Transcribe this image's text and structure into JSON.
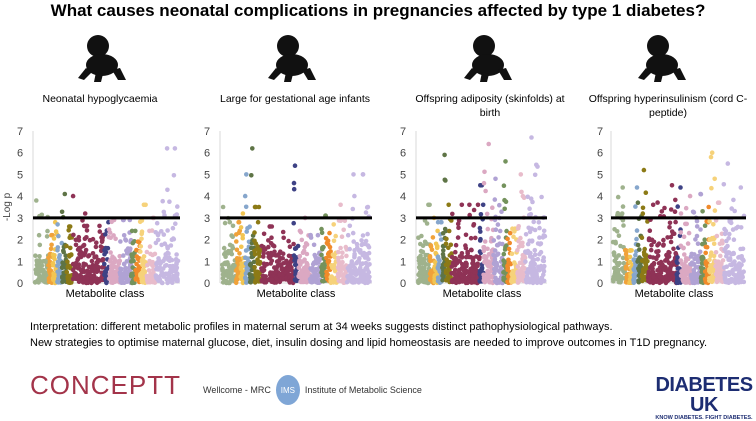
{
  "title": "What causes neonatal complications in pregnancies affected by type 1 diabetes?",
  "interpretation": [
    "Interpretation: different metabolic profiles in maternal serum at 34 weeks suggests distinct pathophysiological pathways.",
    "New strategies to optimise maternal glucose, diet, insulin dosing and lipid homeostasis are needed to improve outcomes in T1D pregnancy."
  ],
  "logos": {
    "conceptt": "CONCEPTT",
    "ims_prefix": "Wellcome - MRC",
    "ims_badge": "IMS",
    "ims_name": "Institute of Metabolic Science",
    "diabetes_uk": "DIABETES UK",
    "diabetes_uk_tagline": "KNOW DIABETES. FIGHT DIABETES."
  },
  "icons": {
    "panel_icon": "crawling-baby-icon"
  },
  "chart_data": [
    {
      "type": "scatter",
      "subtype": "manhattan",
      "title": "Neonatal hypoglycaemia",
      "xlabel": "Metabolite class",
      "ylabel": "-Log p",
      "ylim": [
        0,
        7
      ],
      "yticks": [
        "0",
        "1",
        "2",
        "3",
        "4",
        "5",
        "6",
        "7"
      ],
      "threshold": 3,
      "class_max_values": [
        3.8,
        2.2,
        2.8,
        2.7,
        4.1,
        2.6,
        4.0,
        2.8,
        2.9,
        2.9,
        2.4,
        1.9,
        3.6,
        3.0,
        6.2
      ]
    },
    {
      "type": "scatter",
      "subtype": "manhattan",
      "title": "Large for gestational age infants",
      "xlabel": "Metabolite class",
      "ylabel": "",
      "ylim": [
        0,
        7
      ],
      "yticks": [
        "0",
        "1",
        "2",
        "3",
        "4",
        "5",
        "6",
        "7"
      ],
      "threshold": 3,
      "class_max_values": [
        3.5,
        2.8,
        3.2,
        5.0,
        6.2,
        3.5,
        2.6,
        5.4,
        3.0,
        2.2,
        3.1,
        2.3,
        2.7,
        3.6,
        5.0
      ]
    },
    {
      "type": "scatter",
      "subtype": "manhattan",
      "title": "Offspring adiposity (skinfolds) at birth",
      "xlabel": "Metabolite class",
      "ylabel": "",
      "ylim": [
        0,
        7
      ],
      "yticks": [
        "0",
        "1",
        "2",
        "3",
        "4",
        "5",
        "6",
        "7"
      ],
      "threshold": 3,
      "class_max_values": [
        3.6,
        2.1,
        3.0,
        2.8,
        5.9,
        3.6,
        3.6,
        4.5,
        6.4,
        4.8,
        5.6,
        2.3,
        2.5,
        5.0,
        6.7
      ]
    },
    {
      "type": "scatter",
      "subtype": "manhattan",
      "title": "Offspring hyperinsulinism (cord C-peptide)",
      "xlabel": "Metabolite class",
      "ylabel": "",
      "ylim": [
        0,
        7
      ],
      "yticks": [
        "0",
        "1",
        "2",
        "3",
        "4",
        "5",
        "6",
        "7"
      ],
      "threshold": 3,
      "class_max_values": [
        4.4,
        1.5,
        1.5,
        4.4,
        3.7,
        5.2,
        4.5,
        4.4,
        4.0,
        4.1,
        3.3,
        3.5,
        6.0,
        3.7,
        5.5
      ]
    }
  ],
  "class_colors": [
    "#9fb28d",
    "#f0a23a",
    "#f2c552",
    "#86a6cc",
    "#5e7446",
    "#8c7a16",
    "#8f3356",
    "#3e4285",
    "#dba8c2",
    "#b0a2d4",
    "#74925c",
    "#f08a2a",
    "#f6d27a",
    "#e8bccb",
    "#c6b8e2"
  ],
  "class_weights": [
    3,
    1,
    1,
    1,
    1,
    1.5,
    7,
    1,
    2.5,
    2.5,
    1,
    1,
    1.5,
    2,
    5
  ],
  "threshold_color": "#000000"
}
